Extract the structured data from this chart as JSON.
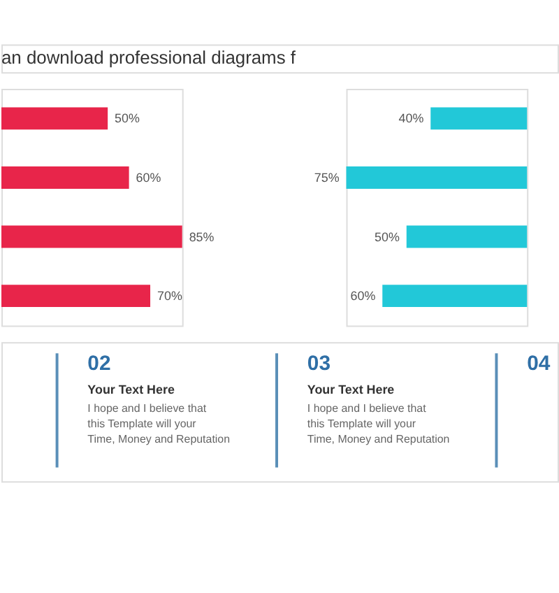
{
  "chart_data": [
    {
      "type": "bar",
      "orientation": "horizontal",
      "subtitle": "an download professional diagrams f",
      "categories": [
        null,
        null,
        null,
        null
      ],
      "values": [
        50,
        60,
        85,
        70
      ],
      "color": "#e8254a",
      "value_labels": [
        "50%",
        "60%",
        "85%",
        "70%"
      ]
    },
    {
      "type": "bar",
      "orientation": "horizontal",
      "categories": [
        null,
        null,
        null,
        null
      ],
      "values": [
        40,
        75,
        50,
        60
      ],
      "color": "#22c8d8",
      "value_labels": [
        "40%",
        "75%",
        "50%",
        "60%"
      ],
      "annotations": [
        "02",
        "Your Text Here",
        "I hope and I believe that this Template will your Time, Money and Reputation",
        "03",
        "Your Text Here",
        "I hope and I believe that this Template will your Time, Money and Reputation",
        "04"
      ]
    }
  ]
}
